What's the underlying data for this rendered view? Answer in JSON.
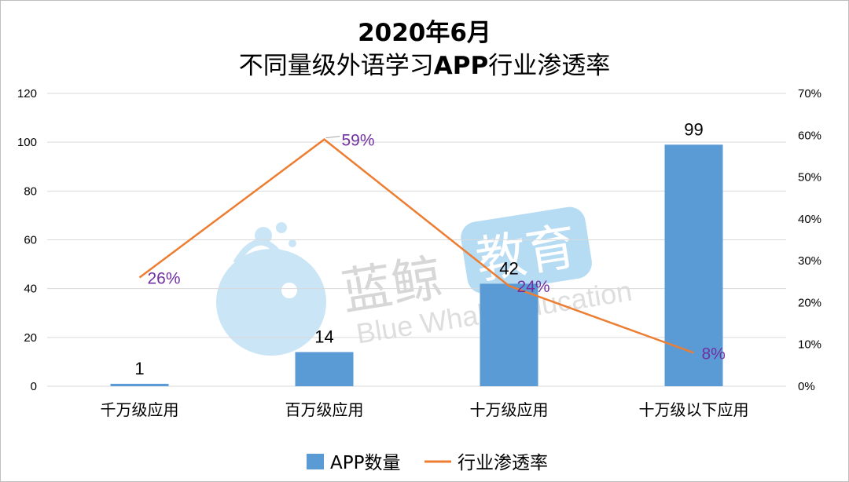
{
  "title_line1": "2020年6月",
  "title_line2_a": "不同量级外语学习",
  "title_line2_b": "APP",
  "title_line2_c": "行业渗透率",
  "watermark": {
    "cn_a": "蓝鲸",
    "cn_b": "教育",
    "en": "Blue Whale Education"
  },
  "colors": {
    "bar": "#5b9bd5",
    "line": "#ed7d31",
    "line_label": "#7030a0",
    "grid": "#d9d9d9"
  },
  "chart_data": {
    "type": "bar",
    "categories": [
      "千万级应用",
      "百万级应用",
      "十万级应用",
      "十万级以下应用"
    ],
    "series": [
      {
        "name": "APP数量",
        "type": "bar",
        "axis": "left",
        "values": [
          1,
          14,
          42,
          99
        ]
      },
      {
        "name": "行业渗透率",
        "type": "line",
        "axis": "right",
        "values": [
          0.26,
          0.59,
          0.24,
          0.08
        ],
        "labels": [
          "26%",
          "59%",
          "24%",
          "8%"
        ]
      }
    ],
    "left_axis": {
      "min": 0,
      "max": 120,
      "step": 20,
      "ticks": [
        "0",
        "20",
        "40",
        "60",
        "80",
        "100",
        "120"
      ]
    },
    "right_axis": {
      "min": 0,
      "max": 0.7,
      "step": 0.1,
      "ticks": [
        "0%",
        "10%",
        "20%",
        "30%",
        "40%",
        "50%",
        "60%",
        "70%"
      ]
    },
    "grid": true,
    "legend_position": "bottom"
  }
}
